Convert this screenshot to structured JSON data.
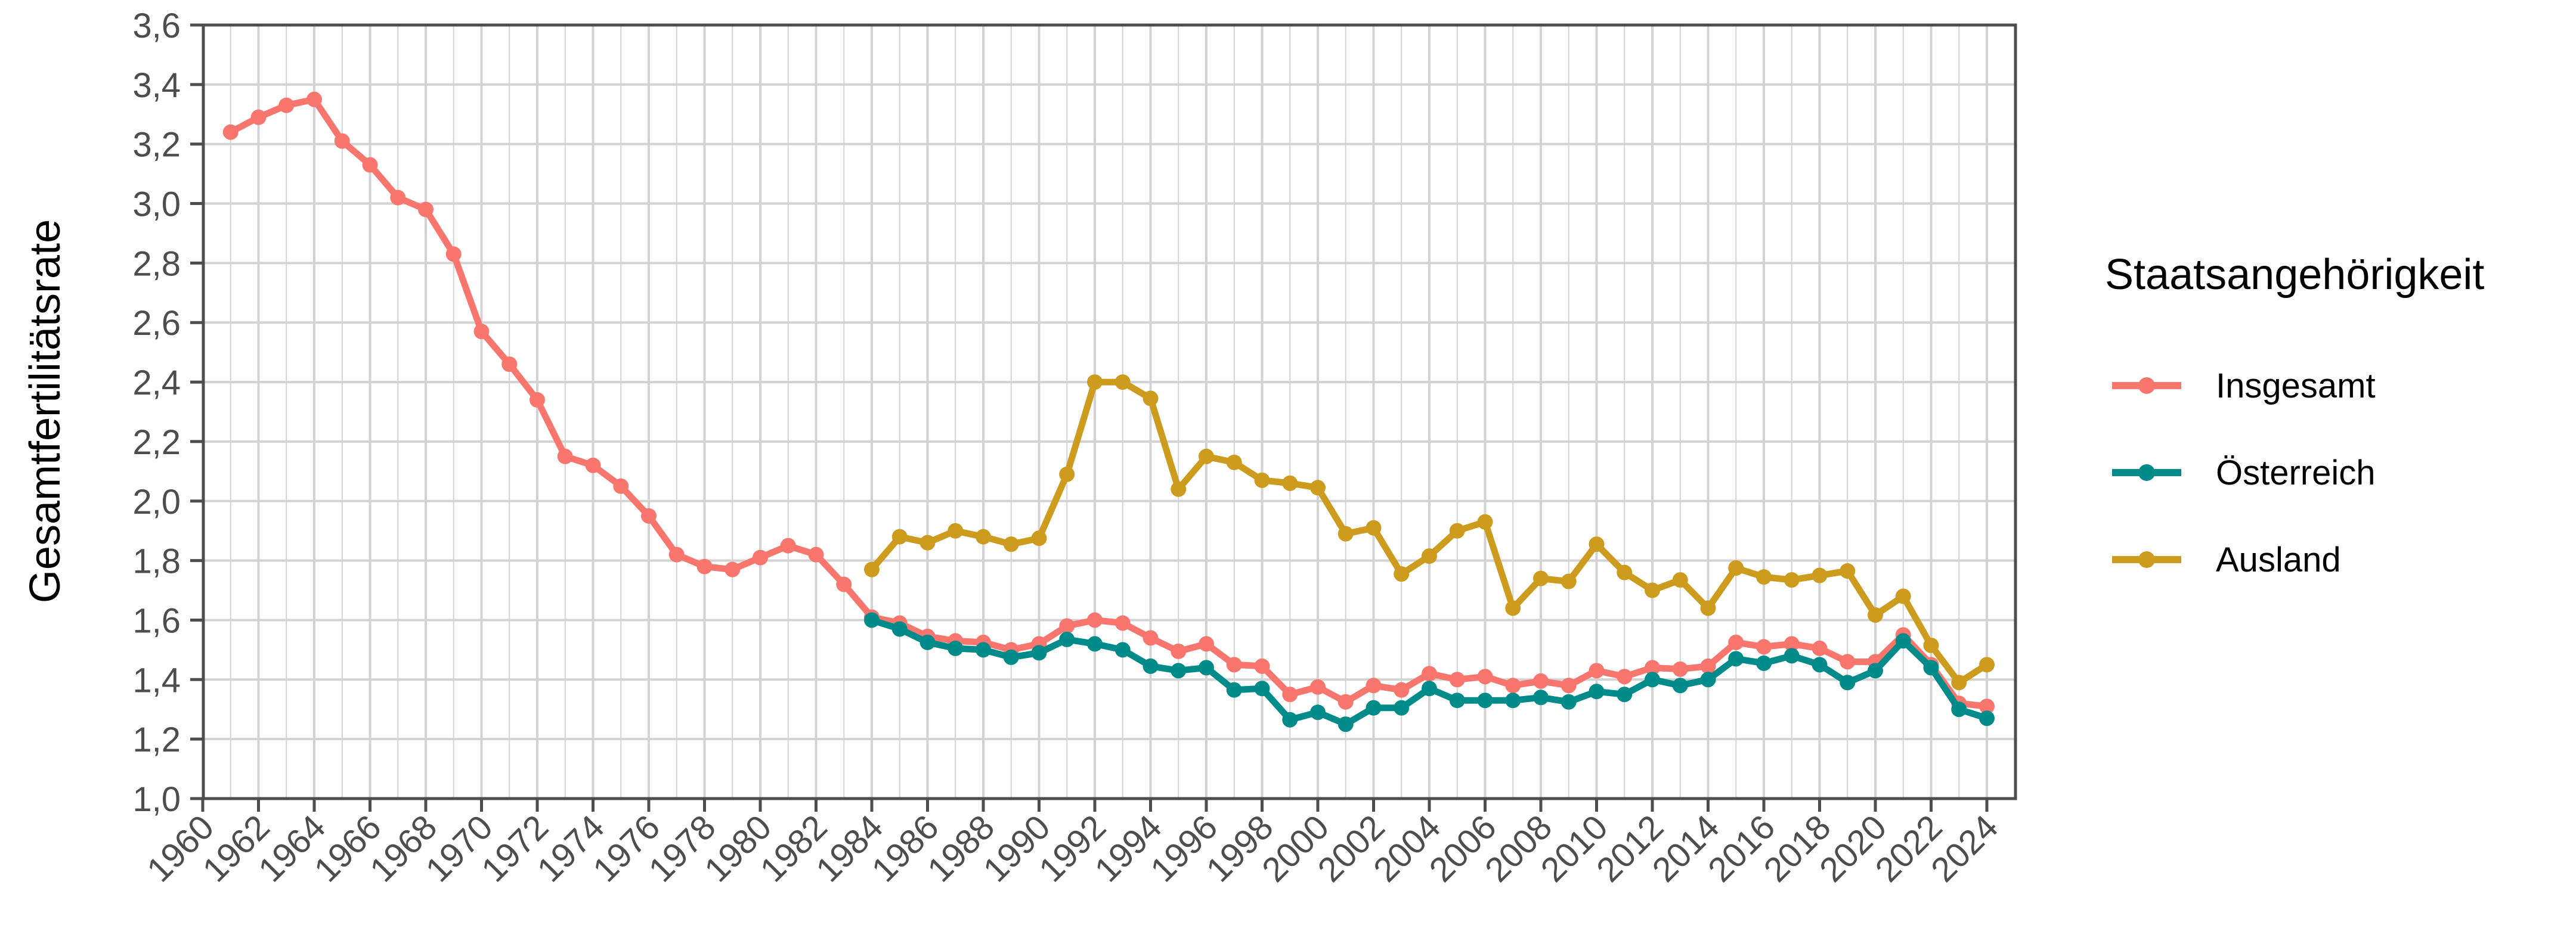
{
  "chart_data": {
    "type": "line",
    "title": "",
    "xlabel": "",
    "ylabel": "Gesamtfertilitätsrate",
    "ylim": [
      1.0,
      3.6
    ],
    "xlim": [
      1960,
      2024
    ],
    "grid": true,
    "legend_position": "right",
    "legend_title": "Staatsangehörigkeit",
    "y_ticks": [
      "1,0",
      "1,2",
      "1,4",
      "1,6",
      "1,8",
      "2,0",
      "2,2",
      "2,4",
      "2,6",
      "2,8",
      "3,0",
      "3,2",
      "3,4",
      "3,6"
    ],
    "y_tick_values": [
      1.0,
      1.2,
      1.4,
      1.6,
      1.8,
      2.0,
      2.2,
      2.4,
      2.6,
      2.8,
      3.0,
      3.2,
      3.4,
      3.6
    ],
    "x_ticks": [
      "1960",
      "1962",
      "1964",
      "1966",
      "1968",
      "1970",
      "1972",
      "1974",
      "1976",
      "1978",
      "1980",
      "1982",
      "1984",
      "1986",
      "1988",
      "1990",
      "1992",
      "1994",
      "1996",
      "1998",
      "2000",
      "2002",
      "2004",
      "2006",
      "2008",
      "2010",
      "2012",
      "2014",
      "2016",
      "2018",
      "2020",
      "2022",
      "2024"
    ],
    "series": [
      {
        "name": "Insgesamt",
        "color": "#F8766D",
        "x": [
          1961,
          1962,
          1963,
          1964,
          1965,
          1966,
          1967,
          1968,
          1969,
          1970,
          1971,
          1972,
          1973,
          1974,
          1975,
          1976,
          1977,
          1978,
          1979,
          1980,
          1981,
          1982,
          1983,
          1984,
          1985,
          1986,
          1987,
          1988,
          1989,
          1990,
          1991,
          1992,
          1993,
          1994,
          1995,
          1996,
          1997,
          1998,
          1999,
          2000,
          2001,
          2002,
          2003,
          2004,
          2005,
          2006,
          2007,
          2008,
          2009,
          2010,
          2011,
          2012,
          2013,
          2014,
          2015,
          2016,
          2017,
          2018,
          2019,
          2020,
          2021,
          2022,
          2023,
          2024
        ],
        "values": [
          3.24,
          3.29,
          3.33,
          3.35,
          3.21,
          3.13,
          3.02,
          2.98,
          2.83,
          2.57,
          2.46,
          2.34,
          2.15,
          2.12,
          2.05,
          1.95,
          1.82,
          1.78,
          1.77,
          1.81,
          1.85,
          1.82,
          1.72,
          1.61,
          1.59,
          1.545,
          1.53,
          1.525,
          1.5,
          1.52,
          1.58,
          1.6,
          1.59,
          1.54,
          1.495,
          1.52,
          1.45,
          1.445,
          1.35,
          1.375,
          1.325,
          1.38,
          1.365,
          1.42,
          1.4,
          1.41,
          1.38,
          1.395,
          1.38,
          1.43,
          1.41,
          1.44,
          1.435,
          1.445,
          1.525,
          1.51,
          1.52,
          1.505,
          1.46,
          1.46,
          1.55,
          1.45,
          1.32,
          1.31
        ]
      },
      {
        "name": "Österreich",
        "color": "#008B8B",
        "x": [
          1984,
          1985,
          1986,
          1987,
          1988,
          1989,
          1990,
          1991,
          1992,
          1993,
          1994,
          1995,
          1996,
          1997,
          1998,
          1999,
          2000,
          2001,
          2002,
          2003,
          2004,
          2005,
          2006,
          2007,
          2008,
          2009,
          2010,
          2011,
          2012,
          2013,
          2014,
          2015,
          2016,
          2017,
          2018,
          2019,
          2020,
          2021,
          2022,
          2023,
          2024
        ],
        "values": [
          1.6,
          1.57,
          1.525,
          1.505,
          1.5,
          1.475,
          1.49,
          1.535,
          1.52,
          1.5,
          1.445,
          1.43,
          1.44,
          1.365,
          1.37,
          1.265,
          1.29,
          1.25,
          1.305,
          1.305,
          1.37,
          1.33,
          1.33,
          1.33,
          1.34,
          1.325,
          1.36,
          1.35,
          1.4,
          1.38,
          1.4,
          1.47,
          1.455,
          1.48,
          1.45,
          1.39,
          1.43,
          1.53,
          1.44,
          1.3,
          1.27
        ]
      },
      {
        "name": "Ausland",
        "color": "#CD9B1D",
        "x": [
          1984,
          1985,
          1986,
          1987,
          1988,
          1989,
          1990,
          1991,
          1992,
          1993,
          1994,
          1995,
          1996,
          1997,
          1998,
          1999,
          2000,
          2001,
          2002,
          2003,
          2004,
          2005,
          2006,
          2007,
          2008,
          2009,
          2010,
          2011,
          2012,
          2013,
          2014,
          2015,
          2016,
          2017,
          2018,
          2019,
          2020,
          2021,
          2022,
          2023,
          2024
        ],
        "values": [
          1.77,
          1.88,
          1.86,
          1.9,
          1.88,
          1.855,
          1.875,
          2.09,
          2.4,
          2.4,
          2.345,
          2.04,
          2.15,
          2.13,
          2.07,
          2.06,
          2.045,
          1.89,
          1.91,
          1.755,
          1.815,
          1.9,
          1.93,
          1.64,
          1.74,
          1.73,
          1.855,
          1.76,
          1.7,
          1.735,
          1.64,
          1.775,
          1.745,
          1.735,
          1.75,
          1.765,
          1.617,
          1.68,
          1.515,
          1.39,
          1.45
        ]
      }
    ]
  },
  "legend": {
    "title": "Staatsangehörigkeit",
    "items": [
      {
        "label": "Insgesamt",
        "color": "#F8766D",
        "icon": "line-point-icon"
      },
      {
        "label": "Österreich",
        "color": "#008B8B",
        "icon": "line-point-icon"
      },
      {
        "label": "Ausland",
        "color": "#CD9B1D",
        "icon": "line-point-icon"
      }
    ]
  },
  "axes": {
    "y_title": "Gesamtfertilitätsrate",
    "axis_color": "#4d4d4d",
    "grid_color": "#d3d3d3"
  }
}
